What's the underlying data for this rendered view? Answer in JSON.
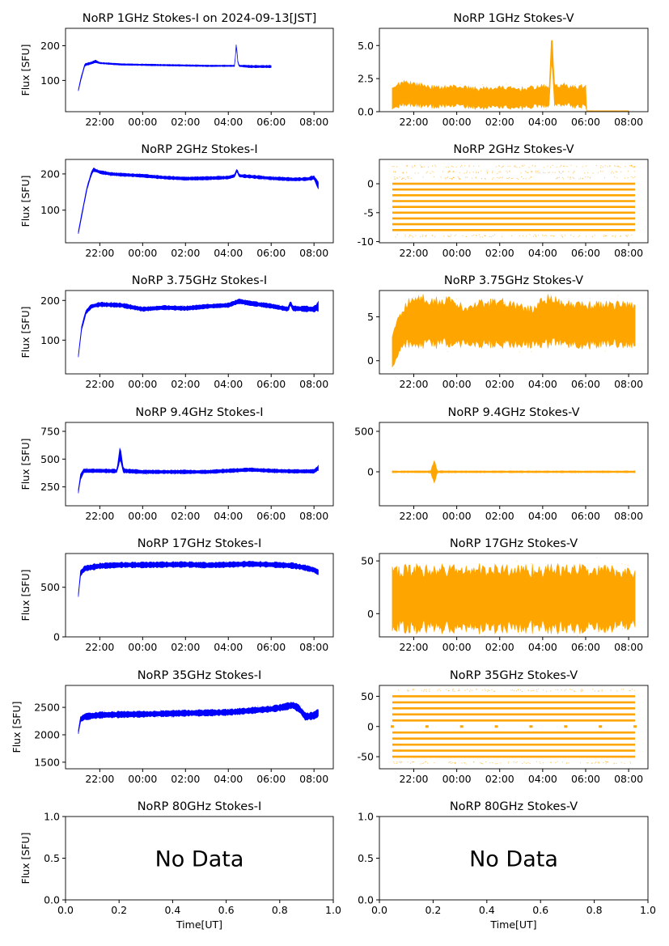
{
  "figure": {
    "colors": {
      "stokes_i": "#0000ff",
      "stokes_v": "#ffa500",
      "axis": "#000000",
      "background": "#ffffff"
    }
  },
  "time_ticks": [
    "22:00",
    "00:00",
    "02:00",
    "04:00",
    "06:00",
    "08:00"
  ],
  "chart_data": [
    {
      "type": "scatter",
      "title": "NoRP 1GHz Stokes-I on 2024-09-13[JST]",
      "ylabel": "Flux [SFU]",
      "xlabel": "",
      "ylim": [
        10,
        250
      ],
      "yticks": [
        100,
        200
      ],
      "xlim": [
        20.4,
        32.9
      ],
      "series": [
        {
          "color": "#0000ff",
          "style": "band",
          "x": [
            21.0,
            21.1,
            21.3,
            21.6,
            21.8,
            22.0,
            22.5,
            23.0,
            24.0,
            25.0,
            26.0,
            27.0,
            28.0,
            28.3,
            28.38,
            28.42,
            28.5,
            28.8,
            29.0,
            29.5,
            30.0
          ],
          "y": [
            72,
            100,
            145,
            150,
            155,
            150,
            148,
            146,
            145,
            144,
            143,
            142,
            142,
            142,
            215,
            160,
            142,
            141,
            140,
            140,
            140
          ],
          "spread": [
            3,
            3,
            3,
            3,
            3,
            2,
            2,
            2,
            2,
            2,
            2,
            2,
            2,
            2,
            3,
            3,
            2,
            3,
            3,
            3,
            3
          ]
        }
      ]
    },
    {
      "type": "scatter",
      "title": "NoRP 1GHz Stokes-V",
      "ylabel": "",
      "xlabel": "",
      "ylim": [
        0,
        6.3
      ],
      "yticks": [
        0.0,
        2.5,
        5.0
      ],
      "xlim": [
        20.4,
        32.9
      ],
      "series": [
        {
          "color": "#ffa500",
          "style": "band",
          "x": [
            21.0,
            21.5,
            22.0,
            23.0,
            24.0,
            25.0,
            26.0,
            27.0,
            28.0,
            28.3,
            28.42,
            28.55,
            28.8,
            29.0,
            29.5,
            30.0,
            30.02,
            31.0,
            32.0
          ],
          "y": [
            1.0,
            1.4,
            1.3,
            1.1,
            1.2,
            1.0,
            1.1,
            1.0,
            1.2,
            1.1,
            5.2,
            1.3,
            1.2,
            1.3,
            1.1,
            1.2,
            0.05,
            0.05,
            0.05
          ],
          "spread": [
            0.7,
            0.9,
            0.8,
            0.7,
            0.7,
            0.7,
            0.7,
            0.7,
            0.7,
            0.7,
            0.9,
            0.8,
            0.7,
            0.7,
            0.7,
            0.8,
            0.02,
            0.02,
            0.02
          ]
        }
      ]
    },
    {
      "type": "scatter",
      "title": "NoRP 2GHz Stokes-I",
      "ylabel": "Flux [SFU]",
      "xlabel": "",
      "ylim": [
        10,
        240
      ],
      "yticks": [
        100,
        200
      ],
      "xlim": [
        20.4,
        32.9
      ],
      "series": [
        {
          "color": "#0000ff",
          "style": "band",
          "x": [
            21.0,
            21.2,
            21.4,
            21.6,
            21.7,
            22.0,
            22.5,
            23.0,
            24.0,
            25.0,
            26.0,
            27.0,
            28.0,
            28.3,
            28.4,
            28.5,
            29.0,
            30.0,
            31.0,
            31.7,
            32.0,
            32.2
          ],
          "y": [
            38,
            100,
            160,
            200,
            212,
            205,
            200,
            198,
            195,
            190,
            187,
            188,
            190,
            195,
            212,
            195,
            193,
            188,
            185,
            186,
            190,
            168
          ],
          "spread": [
            3,
            4,
            4,
            4,
            4,
            4,
            4,
            4,
            4,
            4,
            4,
            4,
            4,
            4,
            4,
            4,
            4,
            4,
            4,
            4,
            5,
            10
          ]
        }
      ]
    },
    {
      "type": "scatter",
      "title": "NoRP 2GHz Stokes-V",
      "ylabel": "",
      "xlabel": "",
      "ylim": [
        -10.2,
        4.2
      ],
      "yticks": [
        -10,
        -5,
        0
      ],
      "xlim": [
        20.4,
        32.9
      ],
      "series": [
        {
          "color": "#ffa500",
          "style": "levels",
          "xrange": [
            21.0,
            32.3
          ],
          "levels": [
            -8,
            -7,
            -6,
            -5,
            -4,
            -3,
            -2,
            -1,
            0
          ],
          "sparse": [
            1,
            2,
            3,
            -9
          ]
        }
      ]
    },
    {
      "type": "scatter",
      "title": "NoRP 3.75GHz Stokes-I",
      "ylabel": "Flux [SFU]",
      "xlabel": "",
      "ylim": [
        15,
        225
      ],
      "yticks": [
        100,
        200
      ],
      "xlim": [
        20.4,
        32.9
      ],
      "series": [
        {
          "color": "#0000ff",
          "style": "band",
          "x": [
            21.0,
            21.15,
            21.35,
            21.6,
            22.0,
            23.0,
            24.0,
            25.0,
            26.0,
            27.0,
            28.0,
            28.5,
            29.0,
            30.0,
            30.8,
            30.9,
            31.0,
            32.0,
            32.2
          ],
          "y": [
            60,
            130,
            170,
            185,
            190,
            188,
            178,
            182,
            180,
            185,
            188,
            198,
            193,
            186,
            178,
            195,
            180,
            178,
            185
          ],
          "spread": [
            3,
            5,
            5,
            5,
            5,
            5,
            5,
            5,
            5,
            5,
            5,
            5,
            5,
            5,
            5,
            6,
            6,
            6,
            10
          ]
        }
      ]
    },
    {
      "type": "scatter",
      "title": "NoRP 3.75GHz Stokes-V",
      "ylabel": "",
      "xlabel": "",
      "ylim": [
        -1.5,
        8.0
      ],
      "yticks": [
        0,
        5
      ],
      "xlim": [
        20.4,
        32.9
      ],
      "series": [
        {
          "color": "#ffa500",
          "style": "band",
          "x": [
            21.0,
            21.3,
            21.7,
            22.5,
            23.0,
            23.5,
            24.5,
            25.0,
            26.0,
            27.0,
            27.5,
            28.0,
            28.5,
            29.0,
            30.0,
            31.0,
            32.0,
            32.3
          ],
          "y": [
            1.0,
            3.0,
            4.3,
            4.5,
            4.3,
            4.5,
            3.9,
            4.2,
            4.3,
            4.0,
            3.8,
            4.4,
            4.6,
            4.2,
            4.0,
            4.2,
            4.1,
            4.0
          ],
          "spread": [
            1.5,
            2.0,
            2.4,
            2.6,
            2.4,
            2.4,
            2.0,
            2.2,
            2.4,
            2.0,
            2.0,
            2.4,
            2.6,
            2.2,
            2.2,
            2.2,
            2.2,
            2.2
          ]
        }
      ]
    },
    {
      "type": "scatter",
      "title": "NoRP 9.4GHz Stokes-I",
      "ylabel": "Flux [SFU]",
      "xlabel": "",
      "ylim": [
        80,
        830
      ],
      "yticks": [
        250,
        500,
        750
      ],
      "xlim": [
        20.4,
        32.9
      ],
      "series": [
        {
          "color": "#0000ff",
          "style": "band",
          "x": [
            21.0,
            21.1,
            21.25,
            22.0,
            22.8,
            22.95,
            23.1,
            24.0,
            25.0,
            26.0,
            27.0,
            28.0,
            29.0,
            30.0,
            31.0,
            32.0,
            32.2
          ],
          "y": [
            210,
            340,
            395,
            395,
            392,
            560,
            395,
            385,
            385,
            385,
            385,
            395,
            405,
            395,
            390,
            390,
            420
          ],
          "spread": [
            15,
            20,
            18,
            15,
            15,
            60,
            18,
            15,
            15,
            15,
            15,
            15,
            15,
            15,
            15,
            15,
            20
          ]
        }
      ]
    },
    {
      "type": "scatter",
      "title": "NoRP 9.4GHz Stokes-V",
      "ylabel": "",
      "xlabel": "",
      "ylim": [
        -420,
        610
      ],
      "yticks": [
        0,
        500
      ],
      "xlim": [
        20.4,
        32.9
      ],
      "series": [
        {
          "color": "#ffa500",
          "style": "band",
          "x": [
            21.0,
            22.0,
            22.8,
            22.95,
            23.1,
            24.0,
            26.0,
            28.0,
            30.0,
            32.3
          ],
          "y": [
            0,
            0,
            0,
            0,
            0,
            0,
            0,
            0,
            0,
            0
          ],
          "spread": [
            10,
            10,
            12,
            140,
            12,
            10,
            10,
            10,
            10,
            10
          ]
        }
      ]
    },
    {
      "type": "scatter",
      "title": "NoRP 17GHz Stokes-I",
      "ylabel": "Flux [SFU]",
      "xlabel": "",
      "ylim": [
        0,
        840
      ],
      "yticks": [
        0,
        500
      ],
      "xlim": [
        20.4,
        32.9
      ],
      "series": [
        {
          "color": "#0000ff",
          "style": "band",
          "x": [
            21.0,
            21.1,
            21.3,
            22.0,
            23.0,
            24.0,
            25.0,
            26.0,
            27.0,
            28.0,
            29.0,
            30.0,
            31.0,
            31.5,
            32.0,
            32.2
          ],
          "y": [
            420,
            640,
            690,
            715,
            725,
            725,
            728,
            730,
            722,
            728,
            735,
            728,
            718,
            700,
            675,
            650
          ],
          "spread": [
            15,
            25,
            25,
            25,
            25,
            25,
            25,
            25,
            25,
            25,
            25,
            25,
            25,
            25,
            25,
            25
          ]
        }
      ]
    },
    {
      "type": "scatter",
      "title": "NoRP 17GHz Stokes-V",
      "ylabel": "",
      "xlabel": "",
      "ylim": [
        -22,
        57
      ],
      "yticks": [
        0,
        50
      ],
      "xlim": [
        20.4,
        32.9
      ],
      "series": [
        {
          "color": "#ffa500",
          "style": "band",
          "x": [
            21.0,
            22.0,
            24.0,
            26.0,
            28.0,
            30.0,
            32.3
          ],
          "y": [
            14,
            14,
            14,
            14,
            14,
            14,
            14
          ],
          "spread": [
            25,
            27,
            27,
            27,
            27,
            27,
            25
          ]
        }
      ]
    },
    {
      "type": "scatter",
      "title": "NoRP 35GHz Stokes-I",
      "ylabel": "Flux [SFU]",
      "xlabel": "",
      "ylim": [
        1380,
        2900
      ],
      "yticks": [
        1500,
        2000,
        2500
      ],
      "xlim": [
        20.4,
        32.9
      ],
      "series": [
        {
          "color": "#0000ff",
          "style": "band",
          "x": [
            21.0,
            21.1,
            21.3,
            22.0,
            23.0,
            24.0,
            25.0,
            26.0,
            27.0,
            28.0,
            29.0,
            30.0,
            30.5,
            31.0,
            31.3,
            31.6,
            32.0,
            32.2
          ],
          "y": [
            2050,
            2280,
            2330,
            2360,
            2370,
            2375,
            2385,
            2395,
            2400,
            2410,
            2440,
            2470,
            2500,
            2540,
            2480,
            2330,
            2350,
            2400
          ],
          "spread": [
            30,
            45,
            50,
            50,
            50,
            50,
            50,
            50,
            50,
            50,
            50,
            50,
            55,
            55,
            60,
            60,
            60,
            60
          ]
        }
      ]
    },
    {
      "type": "scatter",
      "title": "NoRP 35GHz Stokes-V",
      "ylabel": "",
      "xlabel": "",
      "ylim": [
        -70,
        68
      ],
      "yticks": [
        -50,
        0,
        50
      ],
      "xlim": [
        20.4,
        32.9
      ],
      "series": [
        {
          "color": "#ffa500",
          "style": "levels",
          "xrange": [
            21.0,
            32.3
          ],
          "levels": [
            -50,
            -40,
            -30,
            -20,
            -10,
            10,
            20,
            30,
            40,
            50
          ],
          "sparse": [
            -60,
            60
          ],
          "dots": [
            -0.0
          ]
        }
      ]
    },
    {
      "type": "table",
      "title": "NoRP 80GHz Stokes-I",
      "ylabel": "Flux [SFU]",
      "xlabel": "Time[UT]",
      "xlim": [
        0,
        1
      ],
      "ylim": [
        0,
        1
      ],
      "xticks": [
        "0.0",
        "0.2",
        "0.4",
        "0.6",
        "0.8",
        "1.0"
      ],
      "yticks": [
        "0.0",
        "0.5",
        "1.0"
      ],
      "annotation": "No Data"
    },
    {
      "type": "table",
      "title": "NoRP 80GHz Stokes-V",
      "ylabel": "",
      "xlabel": "Time[UT]",
      "xlim": [
        0,
        1
      ],
      "ylim": [
        0,
        1
      ],
      "xticks": [
        "0.0",
        "0.2",
        "0.4",
        "0.6",
        "0.8",
        "1.0"
      ],
      "yticks": [
        "0.0",
        "0.5",
        "1.0"
      ],
      "annotation": "No Data"
    }
  ]
}
